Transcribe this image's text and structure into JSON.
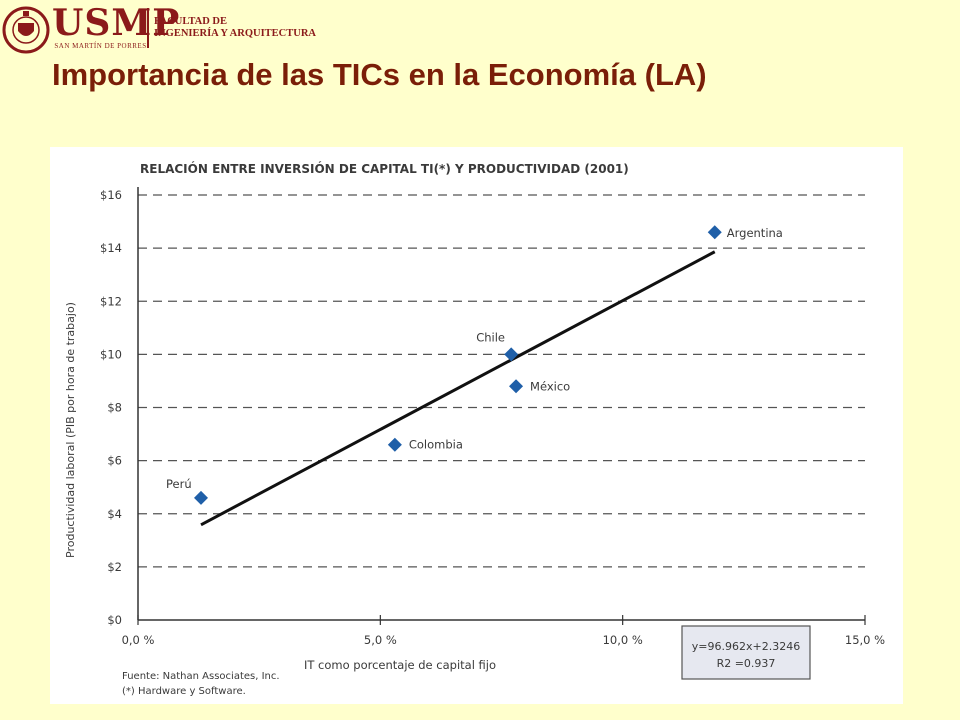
{
  "header": {
    "logo_name": "USMP",
    "logo_subtitle": "SAN MARTÍN DE PORRES",
    "faculty_line1": "FACULTAD DE",
    "faculty_line2": "INGENIERÍA Y ARQUITECTURA",
    "seal_text": "VERITAS LIBERABIT VOS"
  },
  "slide": {
    "title": "Importancia de las TICs en la Economía (LA)"
  },
  "colors": {
    "background": "#FFFFCC",
    "title": "#7A1E08",
    "logo": "#8B1A1A",
    "marker": "#1F5FA8",
    "equation_box": "#E6E8F0"
  },
  "chart_data": {
    "type": "scatter",
    "title": "RELACIÓN ENTRE INVERSIÓN DE CAPITAL TI(*) Y PRODUCTIVIDAD (2001)",
    "xlabel": "IT como porcentaje de capital fijo",
    "ylabel": "Productividad laboral (PIB por hora de trabajo)",
    "xlim": [
      0,
      0.15
    ],
    "ylim": [
      0,
      16
    ],
    "x_ticks": [
      0,
      0.05,
      0.1,
      0.15
    ],
    "x_tick_labels": [
      "0,0 %",
      "5,0 %",
      "10,0 %",
      "15,0 %"
    ],
    "y_ticks": [
      0,
      2,
      4,
      6,
      8,
      10,
      12,
      14,
      16
    ],
    "y_tick_labels": [
      "$0",
      "$2",
      "$4",
      "$6",
      "$8",
      "$10",
      "$12",
      "$14",
      "$16"
    ],
    "grid": "horizontal-dashed",
    "points": [
      {
        "label": "Perú",
        "x": 0.013,
        "y": 4.6
      },
      {
        "label": "Colombia",
        "x": 0.053,
        "y": 6.6
      },
      {
        "label": "Chile",
        "x": 0.077,
        "y": 10.0
      },
      {
        "label": "México",
        "x": 0.078,
        "y": 8.8
      },
      {
        "label": "Argentina",
        "x": 0.119,
        "y": 14.6
      }
    ],
    "trendline": {
      "x_start": 0.013,
      "x_end": 0.119,
      "slope": 96.962,
      "intercept": 2.3246
    },
    "equation_line1": "y=96.962x+2.3246",
    "equation_line2": "R2 =0.937",
    "source_line1": "Fuente: Nathan Associates, Inc.",
    "source_line2": "(*) Hardware y Software."
  }
}
